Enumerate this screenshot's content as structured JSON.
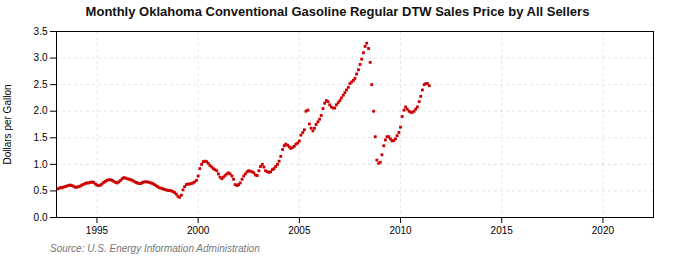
{
  "chart_data": {
    "type": "scatter",
    "title": "Monthly Oklahoma Conventional Gasoline Regular DTW Sales Price by All Sellers",
    "ylabel": "Dollars per Gallon",
    "annotations": [
      "Source: U.S. Energy Information Administration"
    ],
    "color": "#cc0000",
    "marker": "square",
    "grid": true,
    "xlim": [
      1993.0,
      2022.5
    ],
    "ylim": [
      0.0,
      3.5
    ],
    "xticks": [
      1995,
      2000,
      2005,
      2010,
      2015,
      2020
    ],
    "yticks": [
      {
        "value": 0.0,
        "label": "0.0"
      },
      0.5,
      {
        "value": 1.0,
        "label": "1.0"
      },
      1.5,
      {
        "value": 2.0,
        "label": "2.0"
      },
      2.5,
      {
        "value": 3.0,
        "label": "3.0"
      },
      3.5
    ],
    "x": [
      1993.08,
      1993.17,
      1993.25,
      1993.33,
      1993.42,
      1993.5,
      1993.58,
      1993.67,
      1993.75,
      1993.83,
      1993.92,
      1994.0,
      1994.08,
      1994.17,
      1994.25,
      1994.33,
      1994.42,
      1994.5,
      1994.58,
      1994.67,
      1994.75,
      1994.83,
      1994.92,
      1995.0,
      1995.08,
      1995.17,
      1995.25,
      1995.33,
      1995.42,
      1995.5,
      1995.58,
      1995.67,
      1995.75,
      1995.83,
      1995.92,
      1996.0,
      1996.08,
      1996.17,
      1996.25,
      1996.33,
      1996.42,
      1996.5,
      1996.58,
      1996.67,
      1996.75,
      1996.83,
      1996.92,
      1997.0,
      1997.08,
      1997.17,
      1997.25,
      1997.33,
      1997.42,
      1997.5,
      1997.58,
      1997.67,
      1997.75,
      1997.83,
      1997.92,
      1998.0,
      1998.08,
      1998.17,
      1998.25,
      1998.33,
      1998.42,
      1998.5,
      1998.58,
      1998.67,
      1998.75,
      1998.83,
      1998.92,
      1999.0,
      1999.08,
      1999.17,
      1999.25,
      1999.33,
      1999.42,
      1999.5,
      1999.58,
      1999.67,
      1999.75,
      1999.83,
      1999.92,
      2000.0,
      2000.08,
      2000.17,
      2000.25,
      2000.33,
      2000.42,
      2000.5,
      2000.58,
      2000.67,
      2000.75,
      2000.83,
      2000.92,
      2001.0,
      2001.08,
      2001.17,
      2001.25,
      2001.33,
      2001.42,
      2001.5,
      2001.58,
      2001.67,
      2001.75,
      2001.83,
      2001.92,
      2002.0,
      2002.08,
      2002.17,
      2002.25,
      2002.33,
      2002.42,
      2002.5,
      2002.58,
      2002.67,
      2002.75,
      2002.83,
      2002.92,
      2003.0,
      2003.08,
      2003.17,
      2003.25,
      2003.33,
      2003.42,
      2003.5,
      2003.58,
      2003.67,
      2003.75,
      2003.83,
      2003.92,
      2004.0,
      2004.08,
      2004.17,
      2004.25,
      2004.33,
      2004.42,
      2004.5,
      2004.58,
      2004.67,
      2004.75,
      2004.83,
      2004.92,
      2005.0,
      2005.08,
      2005.17,
      2005.25,
      2005.33,
      2005.42,
      2005.5,
      2005.58,
      2005.67,
      2005.75,
      2005.83,
      2005.92,
      2006.0,
      2006.08,
      2006.17,
      2006.25,
      2006.33,
      2006.42,
      2006.5,
      2006.58,
      2006.67,
      2006.75,
      2006.83,
      2006.92,
      2007.0,
      2007.08,
      2007.17,
      2007.25,
      2007.33,
      2007.42,
      2007.5,
      2007.58,
      2007.67,
      2007.75,
      2007.83,
      2007.92,
      2008.0,
      2008.08,
      2008.17,
      2008.25,
      2008.33,
      2008.42,
      2008.5,
      2008.58,
      2008.67,
      2008.75,
      2008.83,
      2008.92,
      2009.0,
      2009.08,
      2009.17,
      2009.25,
      2009.33,
      2009.42,
      2009.5,
      2009.58,
      2009.67,
      2009.75,
      2009.83,
      2009.92,
      2010.0,
      2010.08,
      2010.17,
      2010.25,
      2010.33,
      2010.42,
      2010.5,
      2010.58,
      2010.67,
      2010.75,
      2010.83,
      2010.92,
      2011.0,
      2011.08,
      2011.17,
      2011.25,
      2011.33,
      2011.42
    ],
    "values": [
      0.54,
      0.56,
      0.56,
      0.57,
      0.58,
      0.59,
      0.6,
      0.61,
      0.6,
      0.59,
      0.57,
      0.57,
      0.58,
      0.59,
      0.61,
      0.62,
      0.64,
      0.65,
      0.65,
      0.66,
      0.67,
      0.66,
      0.63,
      0.61,
      0.6,
      0.61,
      0.63,
      0.66,
      0.68,
      0.7,
      0.71,
      0.71,
      0.7,
      0.68,
      0.66,
      0.65,
      0.67,
      0.7,
      0.73,
      0.75,
      0.74,
      0.73,
      0.72,
      0.71,
      0.7,
      0.68,
      0.66,
      0.65,
      0.64,
      0.64,
      0.66,
      0.67,
      0.67,
      0.67,
      0.66,
      0.65,
      0.64,
      0.62,
      0.6,
      0.58,
      0.56,
      0.55,
      0.54,
      0.53,
      0.52,
      0.51,
      0.51,
      0.5,
      0.49,
      0.47,
      0.44,
      0.4,
      0.38,
      0.42,
      0.52,
      0.58,
      0.62,
      0.63,
      0.63,
      0.64,
      0.65,
      0.67,
      0.7,
      0.78,
      0.92,
      1.0,
      1.05,
      1.06,
      1.05,
      1.02,
      0.98,
      0.95,
      0.92,
      0.9,
      0.88,
      0.82,
      0.76,
      0.73,
      0.76,
      0.79,
      0.82,
      0.84,
      0.82,
      0.78,
      0.72,
      0.62,
      0.6,
      0.62,
      0.65,
      0.72,
      0.78,
      0.82,
      0.86,
      0.88,
      0.87,
      0.86,
      0.84,
      0.8,
      0.79,
      0.88,
      0.96,
      1.0,
      0.95,
      0.88,
      0.86,
      0.85,
      0.86,
      0.9,
      0.92,
      0.96,
      1.0,
      1.06,
      1.15,
      1.28,
      1.35,
      1.38,
      1.36,
      1.33,
      1.3,
      1.32,
      1.34,
      1.38,
      1.4,
      1.44,
      1.55,
      1.6,
      1.65,
      2.0,
      2.02,
      1.76,
      1.68,
      1.63,
      1.68,
      1.75,
      1.8,
      1.85,
      1.92,
      2.05,
      2.15,
      2.2,
      2.18,
      2.12,
      2.08,
      2.06,
      2.06,
      2.12,
      2.16,
      2.2,
      2.25,
      2.3,
      2.35,
      2.4,
      2.45,
      2.52,
      2.55,
      2.58,
      2.62,
      2.7,
      2.78,
      2.88,
      2.98,
      3.1,
      3.22,
      3.28,
      3.18,
      2.92,
      2.5,
      2.0,
      1.52,
      1.08,
      1.02,
      1.04,
      1.18,
      1.35,
      1.46,
      1.52,
      1.52,
      1.48,
      1.44,
      1.45,
      1.48,
      1.54,
      1.6,
      1.7,
      1.9,
      2.02,
      2.08,
      2.04,
      2.0,
      1.98,
      1.98,
      2.0,
      2.04,
      2.08,
      2.18,
      2.28,
      2.4,
      2.5,
      2.52,
      2.52,
      2.48
    ]
  }
}
